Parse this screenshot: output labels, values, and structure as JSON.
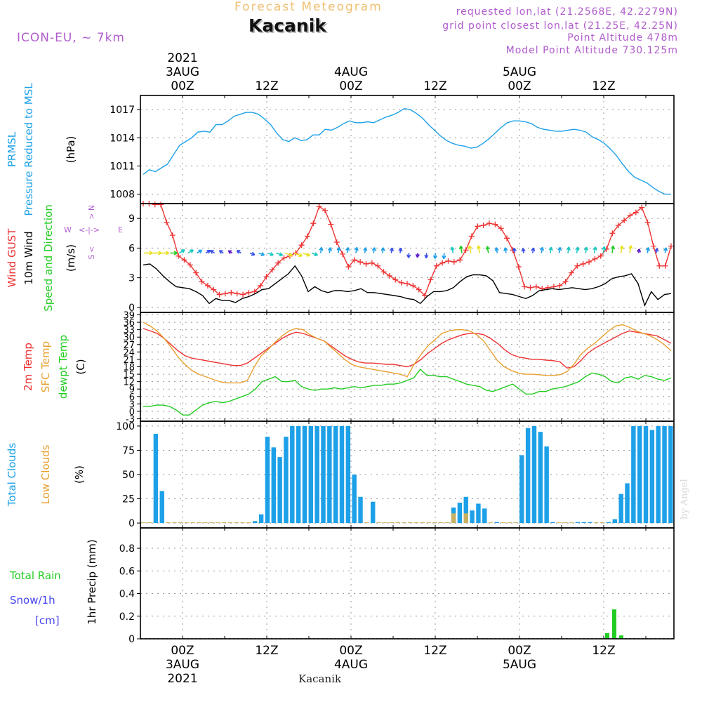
{
  "header": {
    "subtitle": "Forecast Meteogram",
    "title": "Kacanik",
    "model": "ICON-EU, ~ 7km",
    "info": [
      "requested lon,lat (21.2568E, 42.2279N)",
      "grid point closest lon,lat (21.25E, 42.25N)",
      "Point Altitude 478m",
      "Model Point Altitude 730.125m"
    ]
  },
  "footer": {
    "location": "Kacanik",
    "credit": "by Angel"
  },
  "colors": {
    "pressure": "#1da0e8",
    "gust": "#ee3333",
    "wind": "#000000",
    "temp2m": "#ee3333",
    "sfc": "#e8a030",
    "dewpt": "#22cc22",
    "cloud_total": "#1da0e8",
    "cloud_low": "#c8b060",
    "rain": "#22cc22",
    "snow": "#4444ee",
    "compass": "#b05ccc"
  },
  "time_axis": {
    "top_labels": [
      {
        "hour": 6,
        "lines": [
          "2021",
          "3AUG",
          "00Z"
        ]
      },
      {
        "hour": 18,
        "lines": [
          "12Z"
        ]
      },
      {
        "hour": 30,
        "lines": [
          "4AUG",
          "00Z"
        ]
      },
      {
        "hour": 42,
        "lines": [
          "12Z"
        ]
      },
      {
        "hour": 54,
        "lines": [
          "5AUG",
          "00Z"
        ]
      },
      {
        "hour": 66,
        "lines": [
          "12Z"
        ]
      }
    ],
    "bottom_labels": [
      {
        "hour": 6,
        "lines": [
          "00Z",
          "3AUG",
          "2021"
        ]
      },
      {
        "hour": 18,
        "lines": [
          "12Z"
        ]
      },
      {
        "hour": 30,
        "lines": [
          "00Z",
          "4AUG"
        ]
      },
      {
        "hour": 42,
        "lines": [
          "12Z"
        ]
      },
      {
        "hour": 54,
        "lines": [
          "00Z",
          "5AUG"
        ]
      },
      {
        "hour": 66,
        "lines": [
          "12Z"
        ]
      }
    ]
  },
  "chart_data": [
    {
      "type": "line",
      "title": "PRMSL Pressure Reduced to MSL",
      "ylabel_lines": [
        {
          "text": "PRMSL",
          "color": "#1da0e8"
        },
        {
          "text": "Pressure Reduced to MSL",
          "color": "#1da0e8"
        },
        {
          "text": "(hPa)",
          "color": "#000000"
        }
      ],
      "ylim": [
        1007,
        1018.5
      ],
      "yticks": [
        1008,
        1011,
        1014,
        1017
      ],
      "series": [
        {
          "name": "PRMSL",
          "color": "#1da0e8",
          "values": [
            1010.1,
            1010.6,
            1010.4,
            1010.8,
            1011.2,
            1012.2,
            1013.2,
            1013.6,
            1014.0,
            1014.6,
            1014.7,
            1014.6,
            1015.4,
            1015.4,
            1015.8,
            1016.3,
            1016.5,
            1016.7,
            1016.7,
            1016.5,
            1016.0,
            1015.4,
            1014.5,
            1013.8,
            1013.6,
            1014.0,
            1013.7,
            1013.8,
            1014.3,
            1014.3,
            1014.9,
            1014.8,
            1015.1,
            1015.5,
            1015.8,
            1015.6,
            1015.6,
            1015.7,
            1015.6,
            1015.9,
            1016.2,
            1016.4,
            1016.7,
            1017.1,
            1017.0,
            1016.6,
            1016.1,
            1015.4,
            1014.8,
            1014.2,
            1013.7,
            1013.4,
            1013.2,
            1013.1,
            1012.9,
            1013.0,
            1013.4,
            1013.9,
            1014.5,
            1015.1,
            1015.6,
            1015.8,
            1015.8,
            1015.7,
            1015.5,
            1015.1,
            1014.9,
            1014.8,
            1014.7,
            1014.7,
            1014.8,
            1014.9,
            1014.8,
            1014.6,
            1014.1,
            1013.8,
            1013.4,
            1012.8,
            1012.1,
            1011.2,
            1010.4,
            1009.8,
            1009.5,
            1009.2,
            1008.7,
            1008.3,
            1008.0,
            1008.0
          ]
        }
      ]
    },
    {
      "type": "line",
      "title": "Wind GUST / 10m Wind Speed and Direction",
      "ylabel_lines": [
        {
          "text": "Wind GUST",
          "color": "#ee3333"
        },
        {
          "text": "10m Wind",
          "color": "#000000"
        },
        {
          "text": "Speed and Direction",
          "color": "#22cc22"
        },
        {
          "text": "(m/s)",
          "color": "#000000"
        }
      ],
      "compass": {
        "n": "N",
        "s": "S",
        "w": "W",
        "e": "E",
        "arrow": "<-|->"
      },
      "ylim": [
        -0.5,
        10.5
      ],
      "yticks": [
        0,
        3,
        6,
        9
      ],
      "series": [
        {
          "name": "Wind GUST",
          "color": "#ee3333",
          "marker": "+",
          "values": [
            10.5,
            10.5,
            10.4,
            10.4,
            8.6,
            7.3,
            5.2,
            4.8,
            4.3,
            3.5,
            2.6,
            2.2,
            1.8,
            1.3,
            1.4,
            1.5,
            1.4,
            1.3,
            1.5,
            1.6,
            2.2,
            3.1,
            3.8,
            4.5,
            5.0,
            5.2,
            5.5,
            6.3,
            7.2,
            8.5,
            10.2,
            9.8,
            8.4,
            6.6,
            5.4,
            4.1,
            4.8,
            4.6,
            4.4,
            4.5,
            4.2,
            3.6,
            3.2,
            2.8,
            2.5,
            2.4,
            2.2,
            1.8,
            1.2,
            2.8,
            4.2,
            4.5,
            4.7,
            4.6,
            4.8,
            5.8,
            7.2,
            8.2,
            8.3,
            8.5,
            8.4,
            8.0,
            7.0,
            5.8,
            4.1,
            2.1,
            2.0,
            2.1,
            1.9,
            2.0,
            2.1,
            2.2,
            2.6,
            3.5,
            4.2,
            4.4,
            4.6,
            4.9,
            5.2,
            5.9,
            7.5,
            8.3,
            8.8,
            9.3,
            9.6,
            10.1,
            8.6,
            6.2,
            4.2,
            4.2,
            6.2
          ]
        },
        {
          "name": "10m Wind",
          "color": "#000000",
          "values": [
            4.3,
            4.4,
            3.9,
            3.2,
            2.6,
            2.1,
            2.0,
            1.9,
            1.6,
            1.2,
            0.4,
            0.9,
            0.7,
            0.7,
            0.5,
            0.9,
            1.1,
            1.4,
            1.8,
            1.9,
            2.4,
            2.9,
            3.4,
            4.2,
            3.2,
            1.6,
            2.1,
            1.7,
            1.5,
            1.7,
            1.7,
            1.6,
            1.7,
            1.9,
            1.5,
            1.5,
            1.4,
            1.3,
            1.2,
            1.1,
            0.9,
            0.8,
            0.4,
            1.1,
            1.6,
            1.6,
            1.7,
            2.0,
            2.6,
            3.1,
            3.3,
            3.3,
            3.2,
            2.7,
            1.5,
            1.4,
            1.3,
            1.1,
            0.9,
            1.2,
            1.7,
            1.8,
            1.9,
            1.8,
            1.9,
            2.0,
            1.9,
            1.8,
            1.9,
            2.1,
            2.4,
            2.9,
            3.1,
            3.2,
            3.4,
            2.4,
            0.2,
            1.6,
            0.8,
            1.3,
            1.4
          ]
        }
      ],
      "arrow_series": {
        "name": "Speed and Direction",
        "count": 60
      }
    },
    {
      "type": "line",
      "title": "2m Temp / SFC Temp / dewpt Temp",
      "ylabel_lines": [
        {
          "text": "2m Temp",
          "color": "#ee3333"
        },
        {
          "text": "SFC Temp",
          "color": "#e8a030"
        },
        {
          "text": "dewpt Temp",
          "color": "#22cc22"
        },
        {
          "text": "(C)",
          "color": "#000000"
        }
      ],
      "ylim": [
        -4,
        40
      ],
      "yticks": [
        -3,
        0,
        3,
        6,
        9,
        12,
        15,
        18,
        21,
        24,
        27,
        30,
        33,
        36,
        39
      ],
      "series": [
        {
          "name": "2m Temp",
          "color": "#ee3333",
          "values": [
            33.5,
            32.5,
            31.5,
            29.5,
            27.0,
            24.5,
            22.5,
            21.5,
            21.0,
            20.5,
            20.0,
            19.5,
            19.0,
            18.5,
            18.5,
            19.5,
            21.5,
            23.5,
            25.5,
            27.5,
            29.5,
            31.0,
            32.0,
            31.5,
            30.5,
            29.5,
            28.5,
            26.5,
            24.5,
            22.5,
            21.0,
            20.0,
            19.5,
            19.5,
            19.3,
            19.0,
            19.0,
            18.5,
            18.0,
            19.0,
            21.0,
            23.5,
            25.5,
            27.5,
            29.0,
            30.0,
            31.0,
            31.5,
            31.5,
            31.0,
            29.5,
            27.5,
            25.0,
            23.0,
            22.0,
            21.5,
            21.0,
            21.0,
            20.7,
            20.5,
            20.0,
            17.5,
            18.0,
            20.5,
            23.5,
            25.5,
            27.0,
            28.5,
            30.0,
            31.5,
            32.5,
            32.0,
            31.5,
            31.0,
            30.5,
            29.0,
            27.5
          ]
        },
        {
          "name": "SFC Temp",
          "color": "#e8a030",
          "values": [
            36.0,
            34.5,
            32.5,
            29.5,
            26.0,
            22.0,
            19.0,
            16.5,
            15.0,
            14.0,
            13.0,
            12.0,
            11.5,
            11.5,
            11.5,
            12.5,
            18.0,
            22.5,
            25.0,
            28.0,
            30.5,
            32.5,
            33.5,
            33.0,
            31.0,
            29.5,
            28.5,
            26.0,
            23.5,
            21.0,
            19.0,
            18.0,
            17.5,
            17.0,
            16.5,
            16.0,
            15.5,
            15.0,
            14.0,
            19.0,
            23.0,
            26.5,
            29.0,
            31.5,
            32.5,
            33.0,
            33.0,
            32.5,
            31.0,
            28.5,
            24.5,
            20.5,
            18.0,
            16.5,
            15.5,
            15.0,
            15.0,
            14.8,
            14.5,
            14.5,
            14.8,
            16.0,
            19.0,
            23.0,
            25.5,
            27.5,
            30.0,
            32.5,
            34.5,
            35.0,
            34.0,
            32.5,
            31.5,
            30.5,
            29.0,
            27.0,
            24.5
          ]
        },
        {
          "name": "dewpt Temp",
          "color": "#22cc22",
          "values": [
            2.0,
            2.0,
            2.5,
            2.5,
            2.0,
            0.5,
            -1.5,
            -1.5,
            0.5,
            2.5,
            3.5,
            4.0,
            3.5,
            4.0,
            5.0,
            6.0,
            7.0,
            9.0,
            12.0,
            13.0,
            14.0,
            12.0,
            12.0,
            12.5,
            10.0,
            9.0,
            8.5,
            9.0,
            9.0,
            9.5,
            9.0,
            9.5,
            10.0,
            9.5,
            10.0,
            10.5,
            10.5,
            11.0,
            11.0,
            11.5,
            12.5,
            13.5,
            17.0,
            14.5,
            14.5,
            14.0,
            14.0,
            13.0,
            12.0,
            11.0,
            10.5,
            10.0,
            8.5,
            8.0,
            9.0,
            10.0,
            11.0,
            9.0,
            7.0,
            7.0,
            8.0,
            8.0,
            9.0,
            9.5,
            10.0,
            11.0,
            12.0,
            14.0,
            15.5,
            15.0,
            14.0,
            12.0,
            11.5,
            13.5,
            14.0,
            13.0,
            14.5,
            14.0,
            13.0,
            12.5,
            13.5
          ]
        }
      ]
    },
    {
      "type": "bar",
      "title": "Total Clouds / Low Clouds",
      "ylabel_lines": [
        {
          "text": "Total Clouds",
          "color": "#1da0e8"
        },
        {
          "text": "Low Clouds",
          "color": "#e8a030"
        },
        {
          "text": "(%)",
          "color": "#000000"
        }
      ],
      "ylim": [
        -5,
        105
      ],
      "yticks": [
        0,
        25,
        50,
        75,
        100
      ],
      "series": [
        {
          "name": "Total Clouds",
          "color": "#1da0e8",
          "values": [
            0,
            0,
            92,
            33,
            0,
            0,
            0,
            0,
            0,
            0,
            0,
            0,
            0,
            0,
            0,
            0,
            0,
            0,
            2,
            9,
            89,
            78,
            68,
            89,
            100,
            100,
            100,
            100,
            100,
            100,
            100,
            100,
            100,
            100,
            50,
            27,
            0,
            22,
            0,
            0,
            0,
            0,
            0,
            0,
            0,
            0,
            0,
            0,
            0,
            0,
            16,
            21,
            27,
            13,
            20,
            15,
            0,
            1,
            0,
            0,
            0,
            70,
            98,
            100,
            94,
            79,
            1,
            0,
            0,
            0,
            1,
            1,
            1,
            0,
            0,
            1,
            4,
            30,
            41,
            100,
            100,
            100,
            96,
            100,
            100,
            100
          ]
        },
        {
          "name": "Low Clouds",
          "color": "#c8b060",
          "values": [
            0,
            0,
            0,
            0,
            0,
            0,
            0,
            0,
            0,
            0,
            0,
            0,
            0,
            0,
            0,
            0,
            0,
            0,
            0,
            0,
            0,
            0,
            0,
            0,
            0,
            0,
            0,
            0,
            0,
            0,
            0,
            0,
            0,
            0,
            0,
            0,
            0,
            0,
            0,
            0,
            0,
            0,
            0,
            0,
            0,
            0,
            0,
            0,
            0,
            0,
            10,
            0,
            10,
            0,
            0,
            0,
            0,
            0,
            0,
            0,
            0,
            0,
            0,
            0,
            0,
            0,
            0,
            0,
            0,
            0,
            0,
            0,
            0,
            0,
            0,
            0,
            0,
            0,
            0,
            0,
            0,
            0,
            0,
            0,
            0,
            0
          ]
        }
      ]
    },
    {
      "type": "bar",
      "title": "1hr Precip",
      "ylabel_lines": [
        {
          "text": "Total  Rain",
          "color": "#22cc22"
        },
        {
          "text": "Snow/1h",
          "color": "#4444ee"
        },
        {
          "text": "[cm]",
          "color": "#4444ee"
        },
        {
          "text": "1hr Precip (mm)",
          "color": "#000000"
        }
      ],
      "ylim": [
        0,
        0.98
      ],
      "yticks": [
        0,
        0.2,
        0.4,
        0.6,
        0.8
      ],
      "series": [
        {
          "name": "Total Rain",
          "color": "#22cc22",
          "hours": [
            66,
            67,
            68
          ],
          "values": [
            0.05,
            0.26,
            0.03
          ]
        }
      ]
    }
  ]
}
